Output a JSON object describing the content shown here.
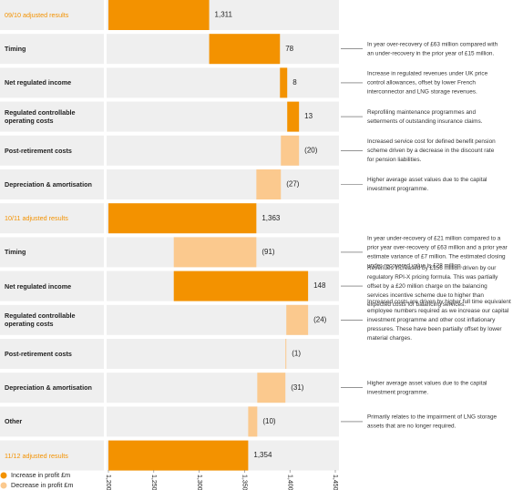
{
  "chart_data": {
    "type": "waterfall",
    "categories": [
      "09/10 adjusted results",
      "Timing",
      "Net regulated income",
      "Regulated controllable operating costs",
      "Post-retirement costs",
      "Depreciation & amortisation",
      "10/11 adjusted results",
      "Timing",
      "Net regulated income",
      "Regulated controllable operating costs",
      "Post-retirement costs",
      "Depreciation & amortisation",
      "Other",
      "11/12 adjusted results"
    ],
    "values": [
      1311,
      78,
      8,
      13,
      -20,
      -27,
      1363,
      -91,
      148,
      -24,
      -1,
      -31,
      -10,
      1354
    ],
    "value_labels": [
      "1,311",
      "78",
      "8",
      "13",
      "(20)",
      "(27)",
      "1,363",
      "(91)",
      "148",
      "(24)",
      "(1)",
      "(31)",
      "(10)",
      "1,354"
    ],
    "is_total": [
      true,
      false,
      false,
      false,
      false,
      false,
      true,
      false,
      false,
      false,
      false,
      false,
      false,
      true
    ],
    "notes": [
      null,
      [
        "In year over-recovery of £63 million compared with",
        "an under-recovery in the prior year of £15 million."
      ],
      [
        "Increase in regulated revenues under UK price",
        "control allowances, offset by lower French",
        "interconnector and LNG storage revenues."
      ],
      [
        "Reprofiling maintenance programmes and",
        "setterments of outstanding insurance claims."
      ],
      [
        "Increased service cost for defined benefit pension",
        "scheme driven by a decrease in the discount rate",
        "for pension liabilities."
      ],
      [
        "Higher average asset values due to the capital",
        "investment programme."
      ],
      null,
      [
        "In year under-recovery of £21 million compared to a",
        "prior year over-recovery of £63 million and a prior year",
        "estimate variance of £7 million. The estimated closing",
        "under-recovered value is £28 million."
      ],
      [
        "Revenues increased by £156 million driven by our",
        "regulatory RPI-X pricing formula. This was partially",
        "offset by a £20 million charge on the balancing",
        "services incentive scheme due to higher than",
        "expected costs for balancing services."
      ],
      [
        "Increased costs are driven by higher full time equivalent",
        "employee numbers required as we increase our capital",
        "investment programme and other cost inflationary",
        "pressures. These have been partially offset by lower",
        "material charges."
      ],
      null,
      [
        "Higher average asset values due to the capital",
        "investment programme."
      ],
      [
        "Primarily relates to the impairment of LNG storage",
        "assets that are no longer required."
      ],
      null
    ],
    "legend": [
      {
        "name": "Increase in profit £m",
        "color": "#f39200"
      },
      {
        "name": "Decrease in profit £m",
        "color": "#fbc98e"
      }
    ],
    "xlim": [
      1200,
      1450
    ],
    "xticks": [
      {
        "value": 1200,
        "label": "1,200"
      },
      {
        "value": 1250,
        "label": "1,250"
      },
      {
        "value": 1300,
        "label": "1,300"
      },
      {
        "value": 1350,
        "label": "1,350"
      },
      {
        "value": 1400,
        "label": "1,400"
      },
      {
        "value": 1450,
        "label": "1,450"
      }
    ]
  }
}
